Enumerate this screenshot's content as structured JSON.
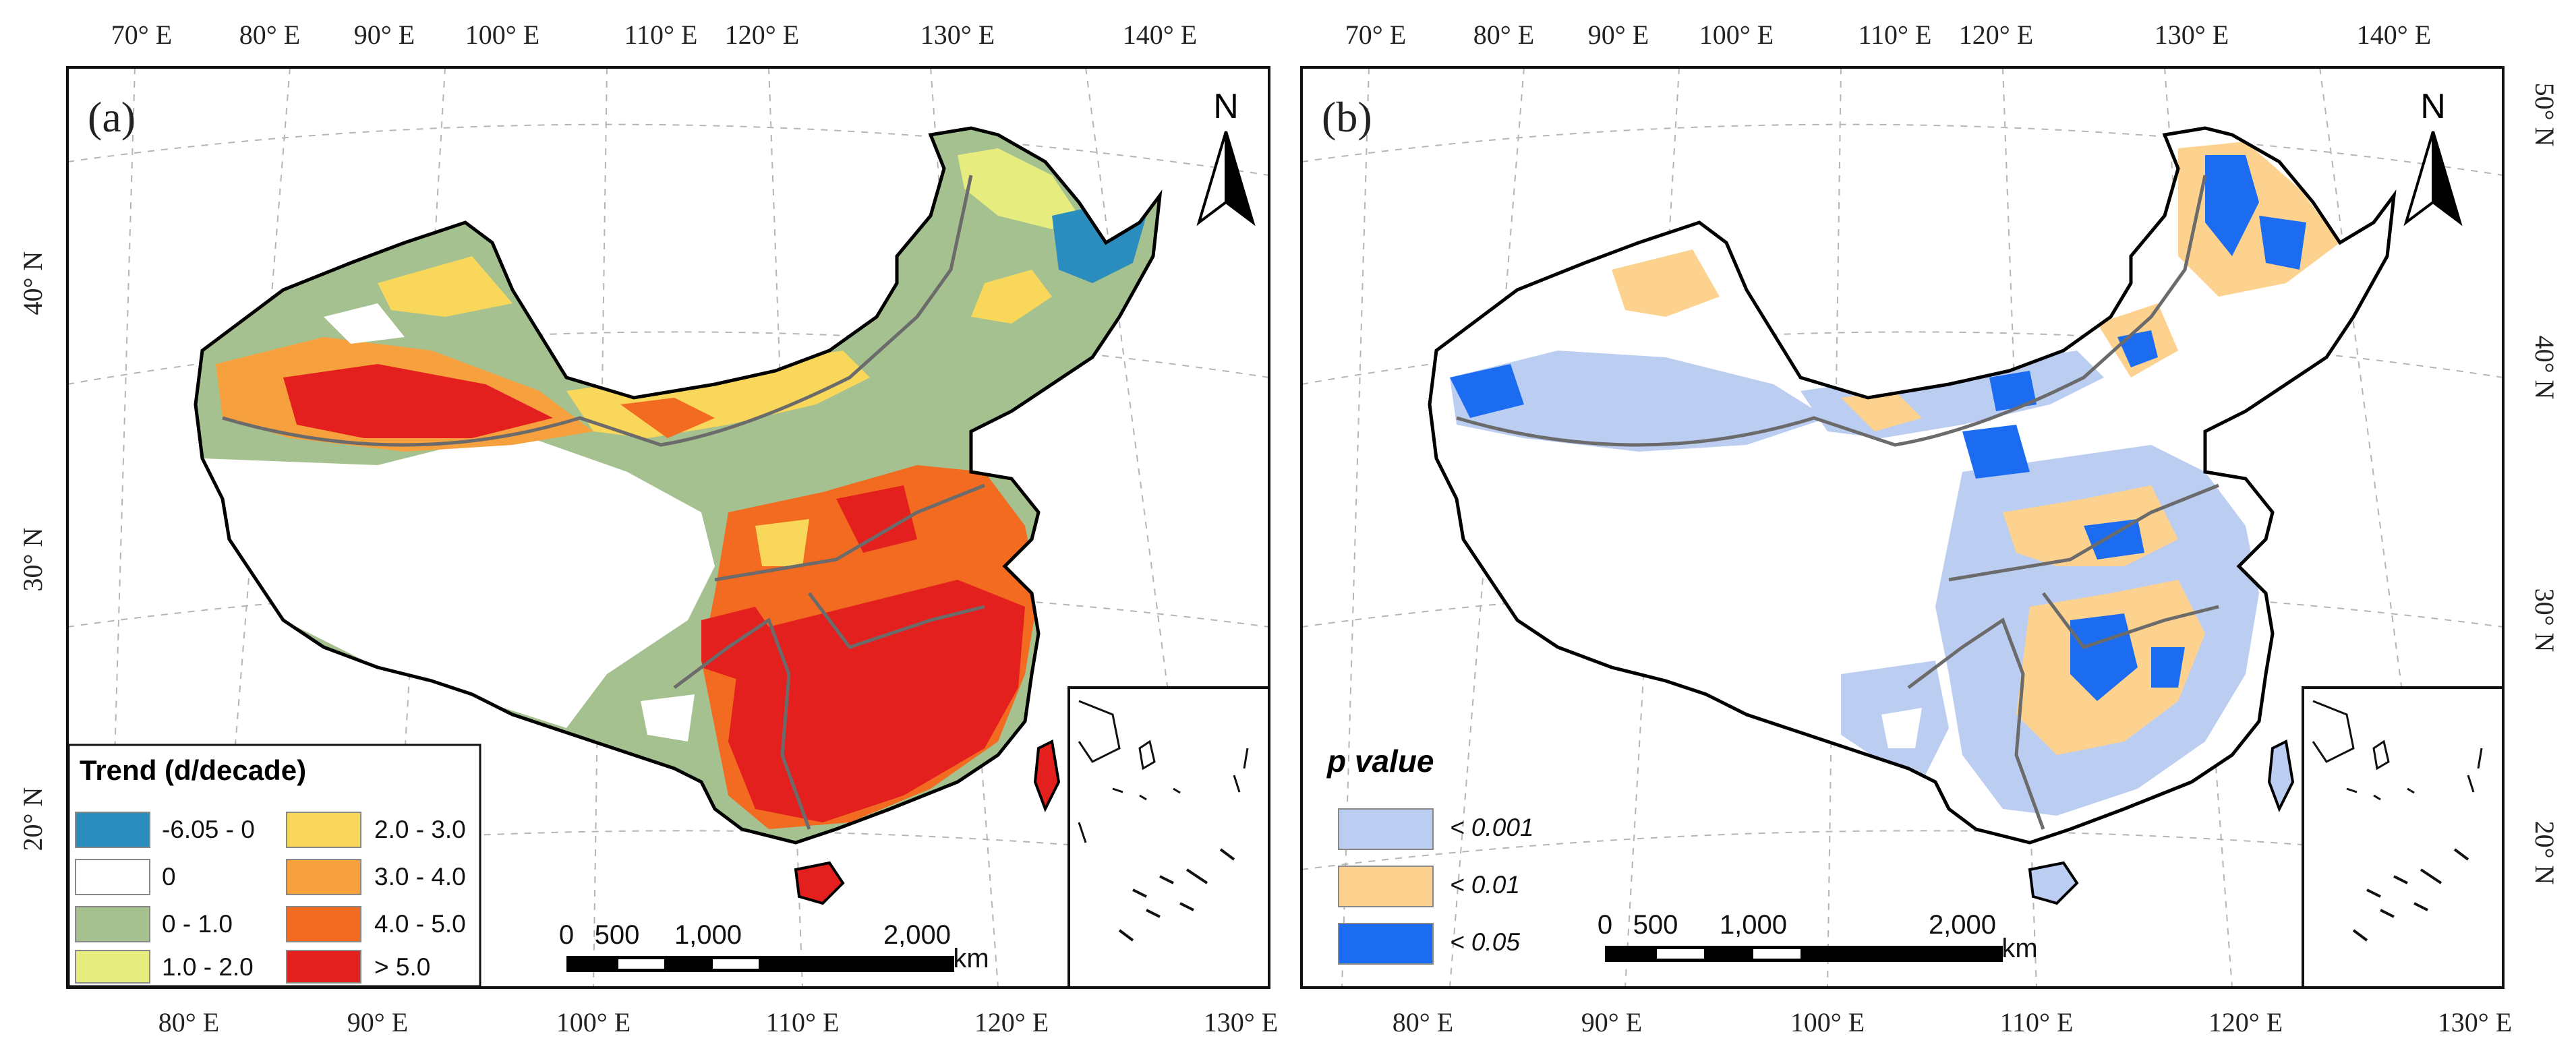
{
  "panel_a": {
    "label": "(a)",
    "north": "N",
    "top_lon_labels": [
      "70° E",
      "80° E",
      "90° E",
      "100° E",
      "110° E",
      "120° E",
      "130° E",
      "140° E"
    ],
    "bottom_lon_labels": [
      "80° E",
      "90° E",
      "100° E",
      "110° E",
      "120° E",
      "130° E"
    ],
    "lat_labels": [
      "40° N",
      "30° N",
      "20° N"
    ],
    "legend": {
      "title": "Trend (d/decade)",
      "items": [
        {
          "label": "-6.05 - 0",
          "color": "#2b8cbe"
        },
        {
          "label": "0",
          "color": "#ffffff"
        },
        {
          "label": "0 - 1.0",
          "color": "#a5c18f"
        },
        {
          "label": "1.0 - 2.0",
          "color": "#e6ec7e"
        },
        {
          "label": "2.0 - 3.0",
          "color": "#f9d75a"
        },
        {
          "label": "3.0 - 4.0",
          "color": "#f7a13e"
        },
        {
          "label": "4.0 - 5.0",
          "color": "#f26b21"
        },
        {
          "label": "> 5.0",
          "color": "#e3201d"
        }
      ]
    },
    "scale": {
      "ticks": [
        "0",
        "500",
        "1,000",
        "2,000"
      ],
      "unit": "km"
    }
  },
  "panel_b": {
    "label": "(b)",
    "north": "N",
    "top_lon_labels": [
      "70° E",
      "80° E",
      "90° E",
      "100° E",
      "110° E",
      "120° E",
      "130° E",
      "140° E"
    ],
    "bottom_lon_labels": [
      "80° E",
      "90° E",
      "100° E",
      "110° E",
      "120° E",
      "130° E"
    ],
    "lat_labels": [
      "50° N",
      "40° N",
      "30° N",
      "20° N"
    ],
    "legend": {
      "title": "p value",
      "items": [
        {
          "label": "< 0.001",
          "color": "#bccdf2"
        },
        {
          "label": "< 0.01",
          "color": "#fdd28e"
        },
        {
          "label": "< 0.05",
          "color": "#1c6cf2"
        }
      ]
    },
    "scale": {
      "ticks": [
        "0",
        "500",
        "1,000",
        "2,000"
      ],
      "unit": "km"
    }
  }
}
